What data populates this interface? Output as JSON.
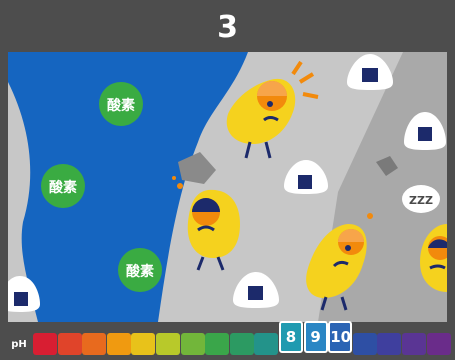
{
  "title": "3",
  "oxygen_label": "酸素",
  "sleep_text": "ZZZ",
  "ph_scale": {
    "label": "pH",
    "active_values": [
      "8",
      "9",
      "10"
    ],
    "colors": [
      "#d81e32",
      "#e0442a",
      "#e86a1e",
      "#f09a10",
      "#e8c21a",
      "#b8c92a",
      "#72b63a",
      "#3aa64a",
      "#2c9a62",
      "#23938a",
      "#1f9ab0",
      "#2a86c4",
      "#2b64b4",
      "#2e4fa4",
      "#3f3f9e",
      "#5a3594",
      "#6a2c8a"
    ]
  }
}
